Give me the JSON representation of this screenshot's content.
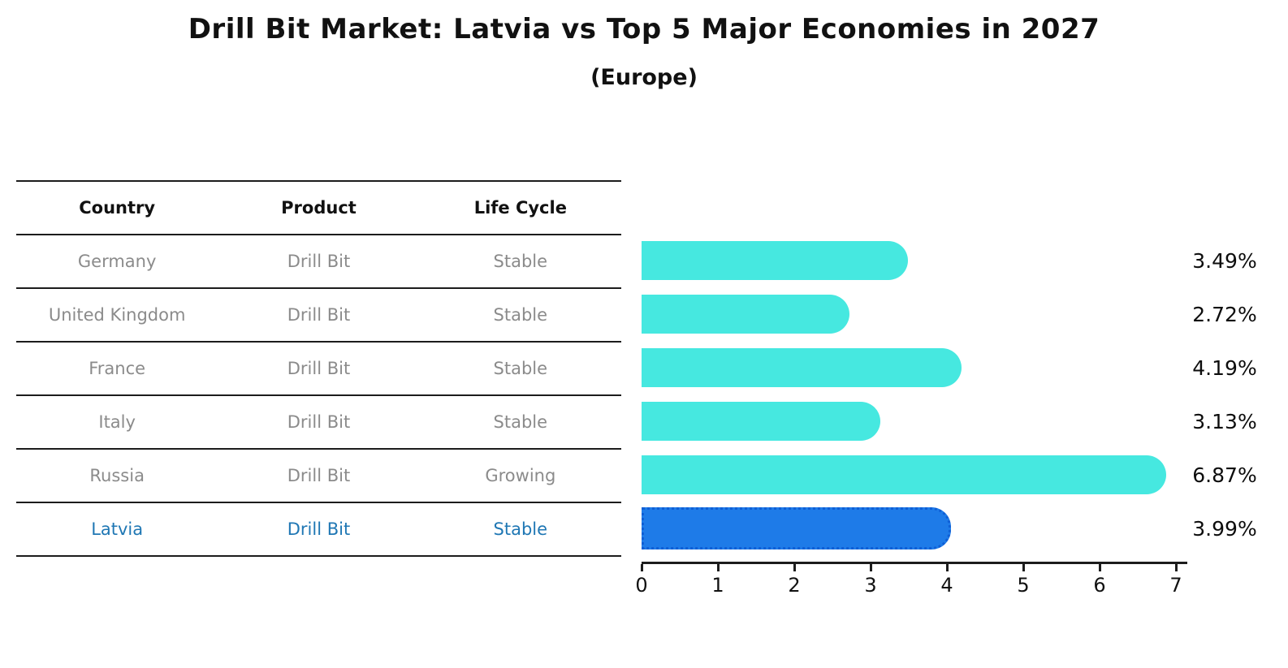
{
  "title": "Drill Bit Market: Latvia vs Top 5 Major Economies in 2027",
  "subtitle": "(Europe)",
  "table": {
    "headers": [
      "Country",
      "Product",
      "Life Cycle"
    ],
    "rows": [
      {
        "country": "Germany",
        "product": "Drill Bit",
        "life_cycle": "Stable",
        "highlight": false
      },
      {
        "country": "United Kingdom",
        "product": "Drill Bit",
        "life_cycle": "Stable",
        "highlight": false
      },
      {
        "country": "France",
        "product": "Drill Bit",
        "life_cycle": "Stable",
        "highlight": false
      },
      {
        "country": "Italy",
        "product": "Drill Bit",
        "life_cycle": "Stable",
        "highlight": false
      },
      {
        "country": "Russia",
        "product": "Drill Bit",
        "life_cycle": "Growing",
        "highlight": false
      },
      {
        "country": "Latvia",
        "product": "Drill Bit",
        "life_cycle": "Stable",
        "highlight": true
      }
    ]
  },
  "chart_data": {
    "type": "bar",
    "orientation": "horizontal",
    "title": "Drill Bit Market: Latvia vs Top 5 Major Economies in 2027",
    "subtitle": "(Europe)",
    "categories": [
      "Germany",
      "United Kingdom",
      "France",
      "Italy",
      "Russia",
      "Latvia"
    ],
    "values": [
      3.49,
      2.72,
      4.19,
      3.13,
      6.87,
      3.99
    ],
    "value_labels": [
      "3.49%",
      "2.72%",
      "4.19%",
      "3.13%",
      "6.87%",
      "3.99%"
    ],
    "xlabel": "",
    "ylabel": "",
    "xlim": [
      0,
      7.15
    ],
    "x_ticks": [
      0,
      1,
      2,
      3,
      4,
      5,
      6,
      7
    ],
    "grid": false,
    "legend": false,
    "bar_color": "#46e8e0",
    "highlight_color": "#1e7be8",
    "highlight_edge_color": "#0f5fd6",
    "highlight_index": 5,
    "highlight_text_color": "#1f77b4"
  },
  "colors": {
    "background": "#ffffff",
    "table_text": "#8b8b8b",
    "header_text": "#111111",
    "line": "#1c1c1c"
  }
}
